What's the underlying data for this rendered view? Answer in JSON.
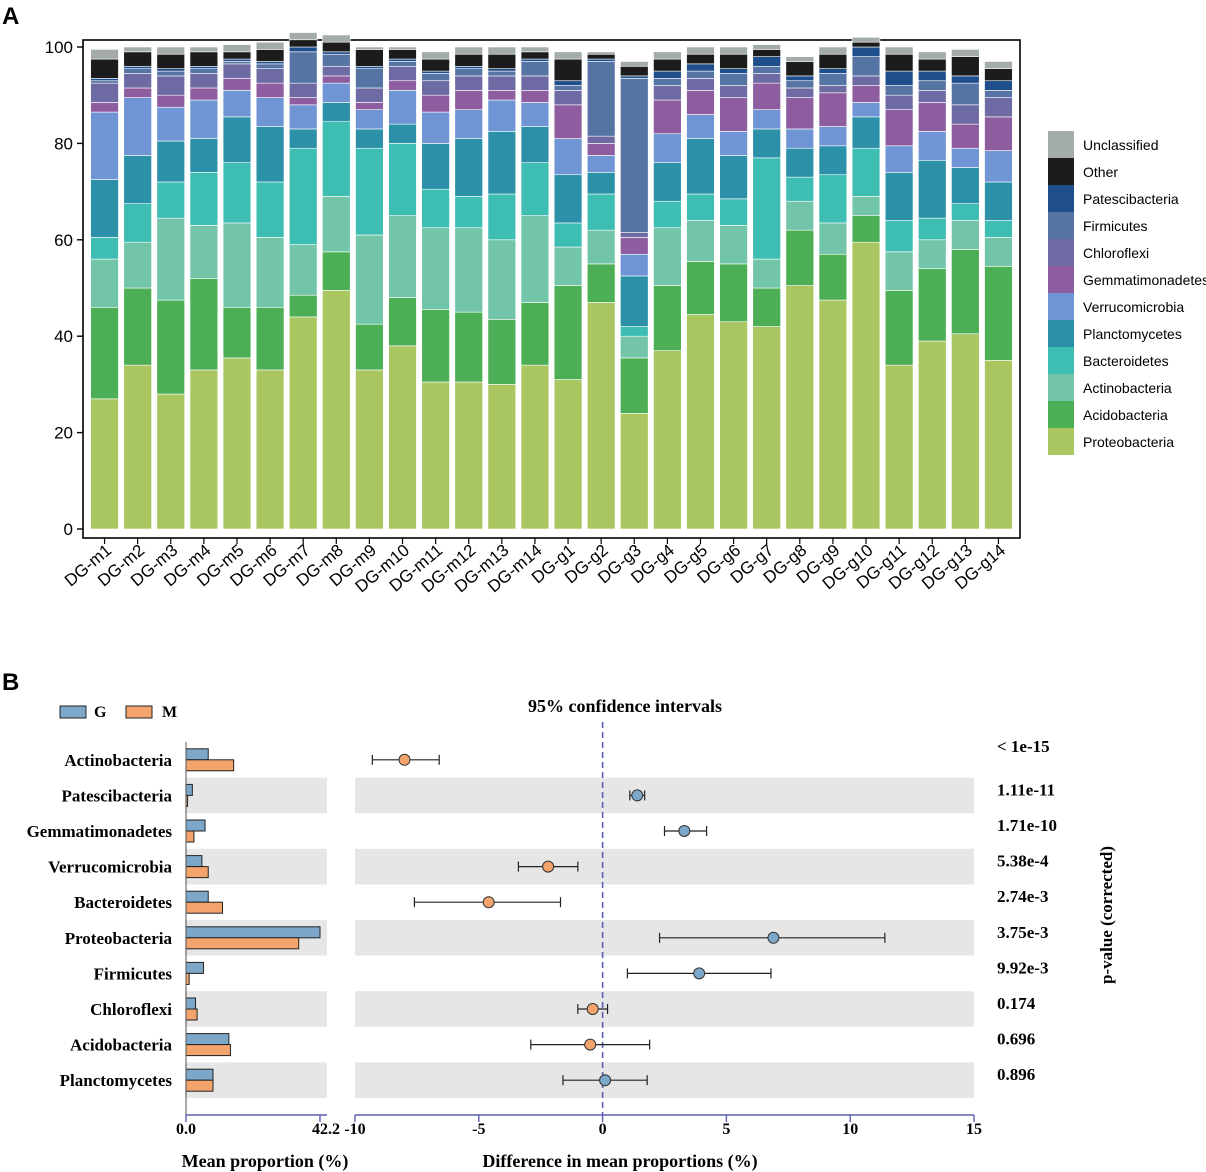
{
  "colors": {
    "Unclassified": "#a3abab",
    "Other": "#1c1c1c",
    "Patescibacteria": "#1f4e8c",
    "Firmicutes": "#5674a3",
    "Chloroflexi": "#6e6aa3",
    "Gemmatimonadetes": "#8e5da0",
    "Verrucomicrobia": "#6f95d4",
    "Planctomycetes": "#2c90a8",
    "Bacteroidetes": "#3ebdb3",
    "Actinobacteria": "#72c5a9",
    "Acidobacteria": "#4cae55",
    "Proteobacteria": "#a9c661",
    "G": "#7ca7c9",
    "M": "#f2a46c",
    "stripe": "#e6e6e6",
    "dashed": "#5a60b0"
  },
  "chart_data": [
    {
      "panel": "A",
      "type": "bar",
      "stacked": true,
      "ylim": [
        0,
        100
      ],
      "yticks": [
        "0",
        "20",
        "40",
        "60",
        "80",
        "100"
      ],
      "xlabel": "",
      "ylabel": "",
      "legend_position": "right",
      "categories": [
        "DG-m1",
        "DG-m2",
        "DG-m3",
        "DG-m4",
        "DG-m5",
        "DG-m6",
        "DG-m7",
        "DG-m8",
        "DG-m9",
        "DG-m10",
        "DG-m11",
        "DG-m12",
        "DG-m13",
        "DG-m14",
        "DG-g1",
        "DG-g2",
        "DG-g3",
        "DG-g4",
        "DG-g5",
        "DG-g6",
        "DG-g7",
        "DG-g8",
        "DG-g9",
        "DG-g10",
        "DG-g11",
        "DG-g12",
        "DG-g13",
        "DG-g14"
      ],
      "legend_order": [
        "Unclassified",
        "Other",
        "Patescibacteria",
        "Firmicutes",
        "Chloroflexi",
        "Gemmatimonadetes",
        "Verrucomicrobia",
        "Planctomycetes",
        "Bacteroidetes",
        "Actinobacteria",
        "Acidobacteria",
        "Proteobacteria"
      ],
      "series": [
        {
          "name": "Proteobacteria",
          "values": [
            27,
            34,
            28,
            33,
            35.5,
            33,
            44,
            49.5,
            33,
            38,
            30.5,
            30.5,
            30,
            34,
            31,
            47,
            24,
            37,
            44.5,
            43,
            42,
            50.5,
            47.5,
            59.5,
            34,
            39,
            40.5,
            35
          ]
        },
        {
          "name": "Acidobacteria",
          "values": [
            19,
            16,
            19.5,
            19,
            10.5,
            13,
            4.5,
            8,
            9.5,
            10,
            15,
            14.5,
            13.5,
            13,
            19.5,
            8,
            11.5,
            13.5,
            11,
            12,
            8,
            11.5,
            9.5,
            5.5,
            15.5,
            15,
            17.5,
            19.5
          ]
        },
        {
          "name": "Actinobacteria",
          "values": [
            10,
            9.5,
            17,
            11,
            17.5,
            14.5,
            10.5,
            11.5,
            18.5,
            17,
            17,
            17.5,
            16.5,
            18,
            8,
            7,
            4.5,
            12,
            8.5,
            8,
            6,
            6,
            6.5,
            4,
            8,
            6,
            6,
            6
          ]
        },
        {
          "name": "Bacteroidetes",
          "values": [
            4.5,
            8,
            7.5,
            11,
            12.5,
            11.5,
            20,
            15.5,
            18,
            15,
            8,
            6.5,
            9.5,
            11,
            5,
            7.5,
            2,
            5.5,
            5.5,
            5.5,
            21,
            5,
            10,
            10,
            6.5,
            4.5,
            3.5,
            3.5
          ]
        },
        {
          "name": "Planctomycetes",
          "values": [
            12,
            10,
            8.5,
            7,
            9.5,
            11.5,
            4,
            4,
            4,
            4,
            9.5,
            12,
            13,
            7.5,
            10,
            4.5,
            10.5,
            8,
            11.5,
            9,
            6,
            6,
            6,
            6.5,
            10,
            12,
            7.5,
            8
          ]
        },
        {
          "name": "Verrucomicrobia",
          "values": [
            14,
            12,
            7,
            8,
            5.5,
            6,
            5,
            4,
            4,
            7,
            6.5,
            6,
            6.5,
            5,
            7.5,
            3.5,
            4.5,
            6,
            5,
            5,
            4,
            4,
            4,
            3,
            5.5,
            6,
            4,
            6.5
          ]
        },
        {
          "name": "Gemmatimonadetes",
          "values": [
            2,
            2,
            2.5,
            2.5,
            2.5,
            3,
            1.5,
            1.5,
            1.5,
            2,
            3.5,
            4,
            2,
            2.5,
            7,
            2.5,
            3.5,
            7,
            5,
            7,
            5.5,
            6.5,
            7,
            3.5,
            7.5,
            6,
            5,
            7
          ]
        },
        {
          "name": "Chloroflexi",
          "values": [
            4,
            3,
            4,
            3,
            3,
            3,
            3,
            2,
            3,
            3,
            3,
            3,
            3,
            3,
            3,
            1.5,
            1,
            3,
            2.5,
            2.5,
            2,
            2,
            1.5,
            2,
            3,
            2.5,
            4,
            4
          ]
        },
        {
          "name": "Firmicutes",
          "values": [
            0.5,
            1,
            1,
            1,
            0.5,
            1,
            6.5,
            2.5,
            4,
            1,
            1.5,
            1.5,
            1,
            3,
            1,
            15.5,
            32,
            1.5,
            1.5,
            2.5,
            1.5,
            1.5,
            2.5,
            4,
            2,
            2,
            4.5,
            1.5
          ]
        },
        {
          "name": "Patescibacteria",
          "values": [
            0.5,
            0.5,
            0.5,
            0.5,
            0.5,
            0.5,
            1,
            0.5,
            0.5,
            0.5,
            0.5,
            0.5,
            0.5,
            0.5,
            1,
            0.5,
            0.5,
            1.5,
            1.5,
            1,
            2,
            1,
            1,
            2,
            3,
            2,
            1.5,
            2
          ]
        },
        {
          "name": "Other",
          "values": [
            4,
            3,
            3,
            3,
            1.5,
            2.5,
            1.5,
            2,
            3.5,
            2,
            2.5,
            2.5,
            3,
            1.5,
            4.5,
            1,
            2,
            2.5,
            2,
            3,
            1.5,
            3,
            3,
            1,
            3.5,
            2.5,
            4,
            2.5
          ]
        },
        {
          "name": "Unclassified",
          "values": [
            2,
            1,
            1.5,
            1,
            1.5,
            1.5,
            1.5,
            1.5,
            0.5,
            0.5,
            1.5,
            1.5,
            1.5,
            1,
            1.5,
            0.5,
            1,
            1.5,
            1.5,
            1.5,
            1,
            1,
            1.5,
            1,
            1.5,
            1.5,
            1.5,
            1.5
          ]
        }
      ]
    },
    {
      "panel": "B",
      "type": "bar",
      "orientation": "horizontal",
      "title": "Mean proportion (%)",
      "legend": [
        "G",
        "M"
      ],
      "categories": [
        "Actinobacteria",
        "Patescibacteria",
        "Gemmatimonadetes",
        "Verrucomicrobia",
        "Bacteroidetes",
        "Proteobacteria",
        "Firmicutes",
        "Chloroflexi",
        "Acidobacteria",
        "Planctomycetes"
      ],
      "series": [
        {
          "name": "G",
          "values": [
            7,
            2,
            6,
            5,
            7,
            42.2,
            5.5,
            3,
            13.5,
            8.5
          ]
        },
        {
          "name": "M",
          "values": [
            15,
            0.5,
            2.5,
            7,
            11.5,
            35.5,
            1,
            3.5,
            14,
            8.5
          ]
        }
      ],
      "xlim": [
        0,
        42.2
      ],
      "xticks": [
        "0.0",
        "42.2"
      ]
    },
    {
      "panel": "B",
      "type": "scatter",
      "title": "95% confidence intervals",
      "xlabel": "Difference in mean proportions (%)",
      "right_axis_label": "p-value (corrected)",
      "xlim": [
        -10,
        15
      ],
      "xticks": [
        "-10",
        "-5",
        "0",
        "5",
        "10",
        "15"
      ],
      "rows": [
        {
          "name": "Actinobacteria",
          "diff": -8,
          "lo": -9.3,
          "hi": -6.6,
          "group": "M",
          "p": "< 1e-15"
        },
        {
          "name": "Patescibacteria",
          "diff": 1.4,
          "lo": 1.1,
          "hi": 1.7,
          "group": "G",
          "p": "1.11e-11"
        },
        {
          "name": "Gemmatimonadetes",
          "diff": 3.3,
          "lo": 2.5,
          "hi": 4.2,
          "group": "G",
          "p": "1.71e-10"
        },
        {
          "name": "Verrucomicrobia",
          "diff": -2.2,
          "lo": -3.4,
          "hi": -1.0,
          "group": "M",
          "p": "5.38e-4"
        },
        {
          "name": "Bacteroidetes",
          "diff": -4.6,
          "lo": -7.6,
          "hi": -1.7,
          "group": "M",
          "p": "2.74e-3"
        },
        {
          "name": "Proteobacteria",
          "diff": 6.9,
          "lo": 2.3,
          "hi": 11.4,
          "group": "G",
          "p": "3.75e-3"
        },
        {
          "name": "Firmicutes",
          "diff": 3.9,
          "lo": 1.0,
          "hi": 6.8,
          "group": "G",
          "p": "9.92e-3"
        },
        {
          "name": "Chloroflexi",
          "diff": -0.4,
          "lo": -1.0,
          "hi": 0.2,
          "group": "M",
          "p": "0.174"
        },
        {
          "name": "Acidobacteria",
          "diff": -0.5,
          "lo": -2.9,
          "hi": 1.9,
          "group": "M",
          "p": "0.696"
        },
        {
          "name": "Planctomycetes",
          "diff": 0.1,
          "lo": -1.6,
          "hi": 1.8,
          "group": "G",
          "p": "0.896"
        }
      ]
    }
  ],
  "labels": {
    "panel_a": "A",
    "panel_b": "B",
    "legend_g": "G",
    "legend_m": "M",
    "ci_title": "95% confidence intervals",
    "mean_xlabel": "Mean proportion (%)",
    "diff_xlabel": "Difference in mean proportions (%)",
    "pvalue_label": "p-value (corrected)"
  }
}
